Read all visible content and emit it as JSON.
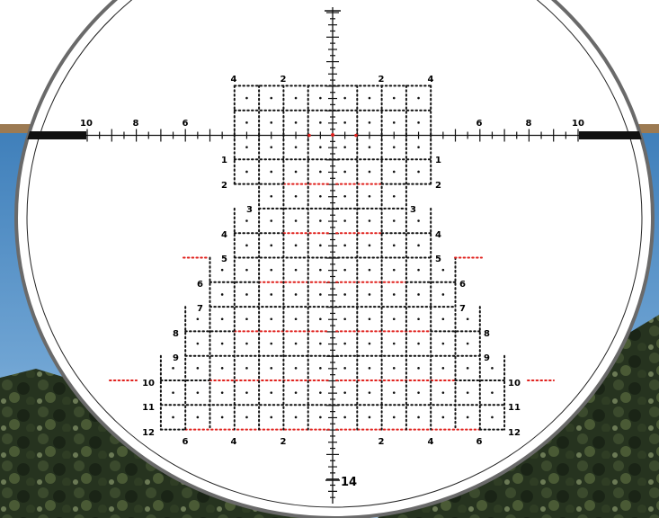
{
  "reticle": {
    "top_numbers": [
      "4",
      "2",
      "2",
      "4"
    ],
    "horizontal_numbers_left": [
      "10",
      "8",
      "6"
    ],
    "horizontal_numbers_right": [
      "6",
      "8",
      "10"
    ],
    "row_labels": [
      "1",
      "2",
      "3",
      "4",
      "5",
      "6",
      "7",
      "8",
      "9",
      "10",
      "11",
      "12"
    ],
    "bottom_numbers": [
      "6",
      "4",
      "2",
      "2",
      "4",
      "6"
    ],
    "bottom_label": "14"
  },
  "colors": {
    "sky": "#5d97c9",
    "sky_light": "#9cc1e0",
    "trees_dark": "#1e2a1a",
    "trees_mid": "#3c4a2e",
    "rock": "#8a7458",
    "reticle_black": "#111111",
    "reticle_red": "#e0201c",
    "lens_white": "#ffffff"
  },
  "icons": {
    "center_dot": "red-aim-dot",
    "crosshair": "crosshair-reticle"
  }
}
